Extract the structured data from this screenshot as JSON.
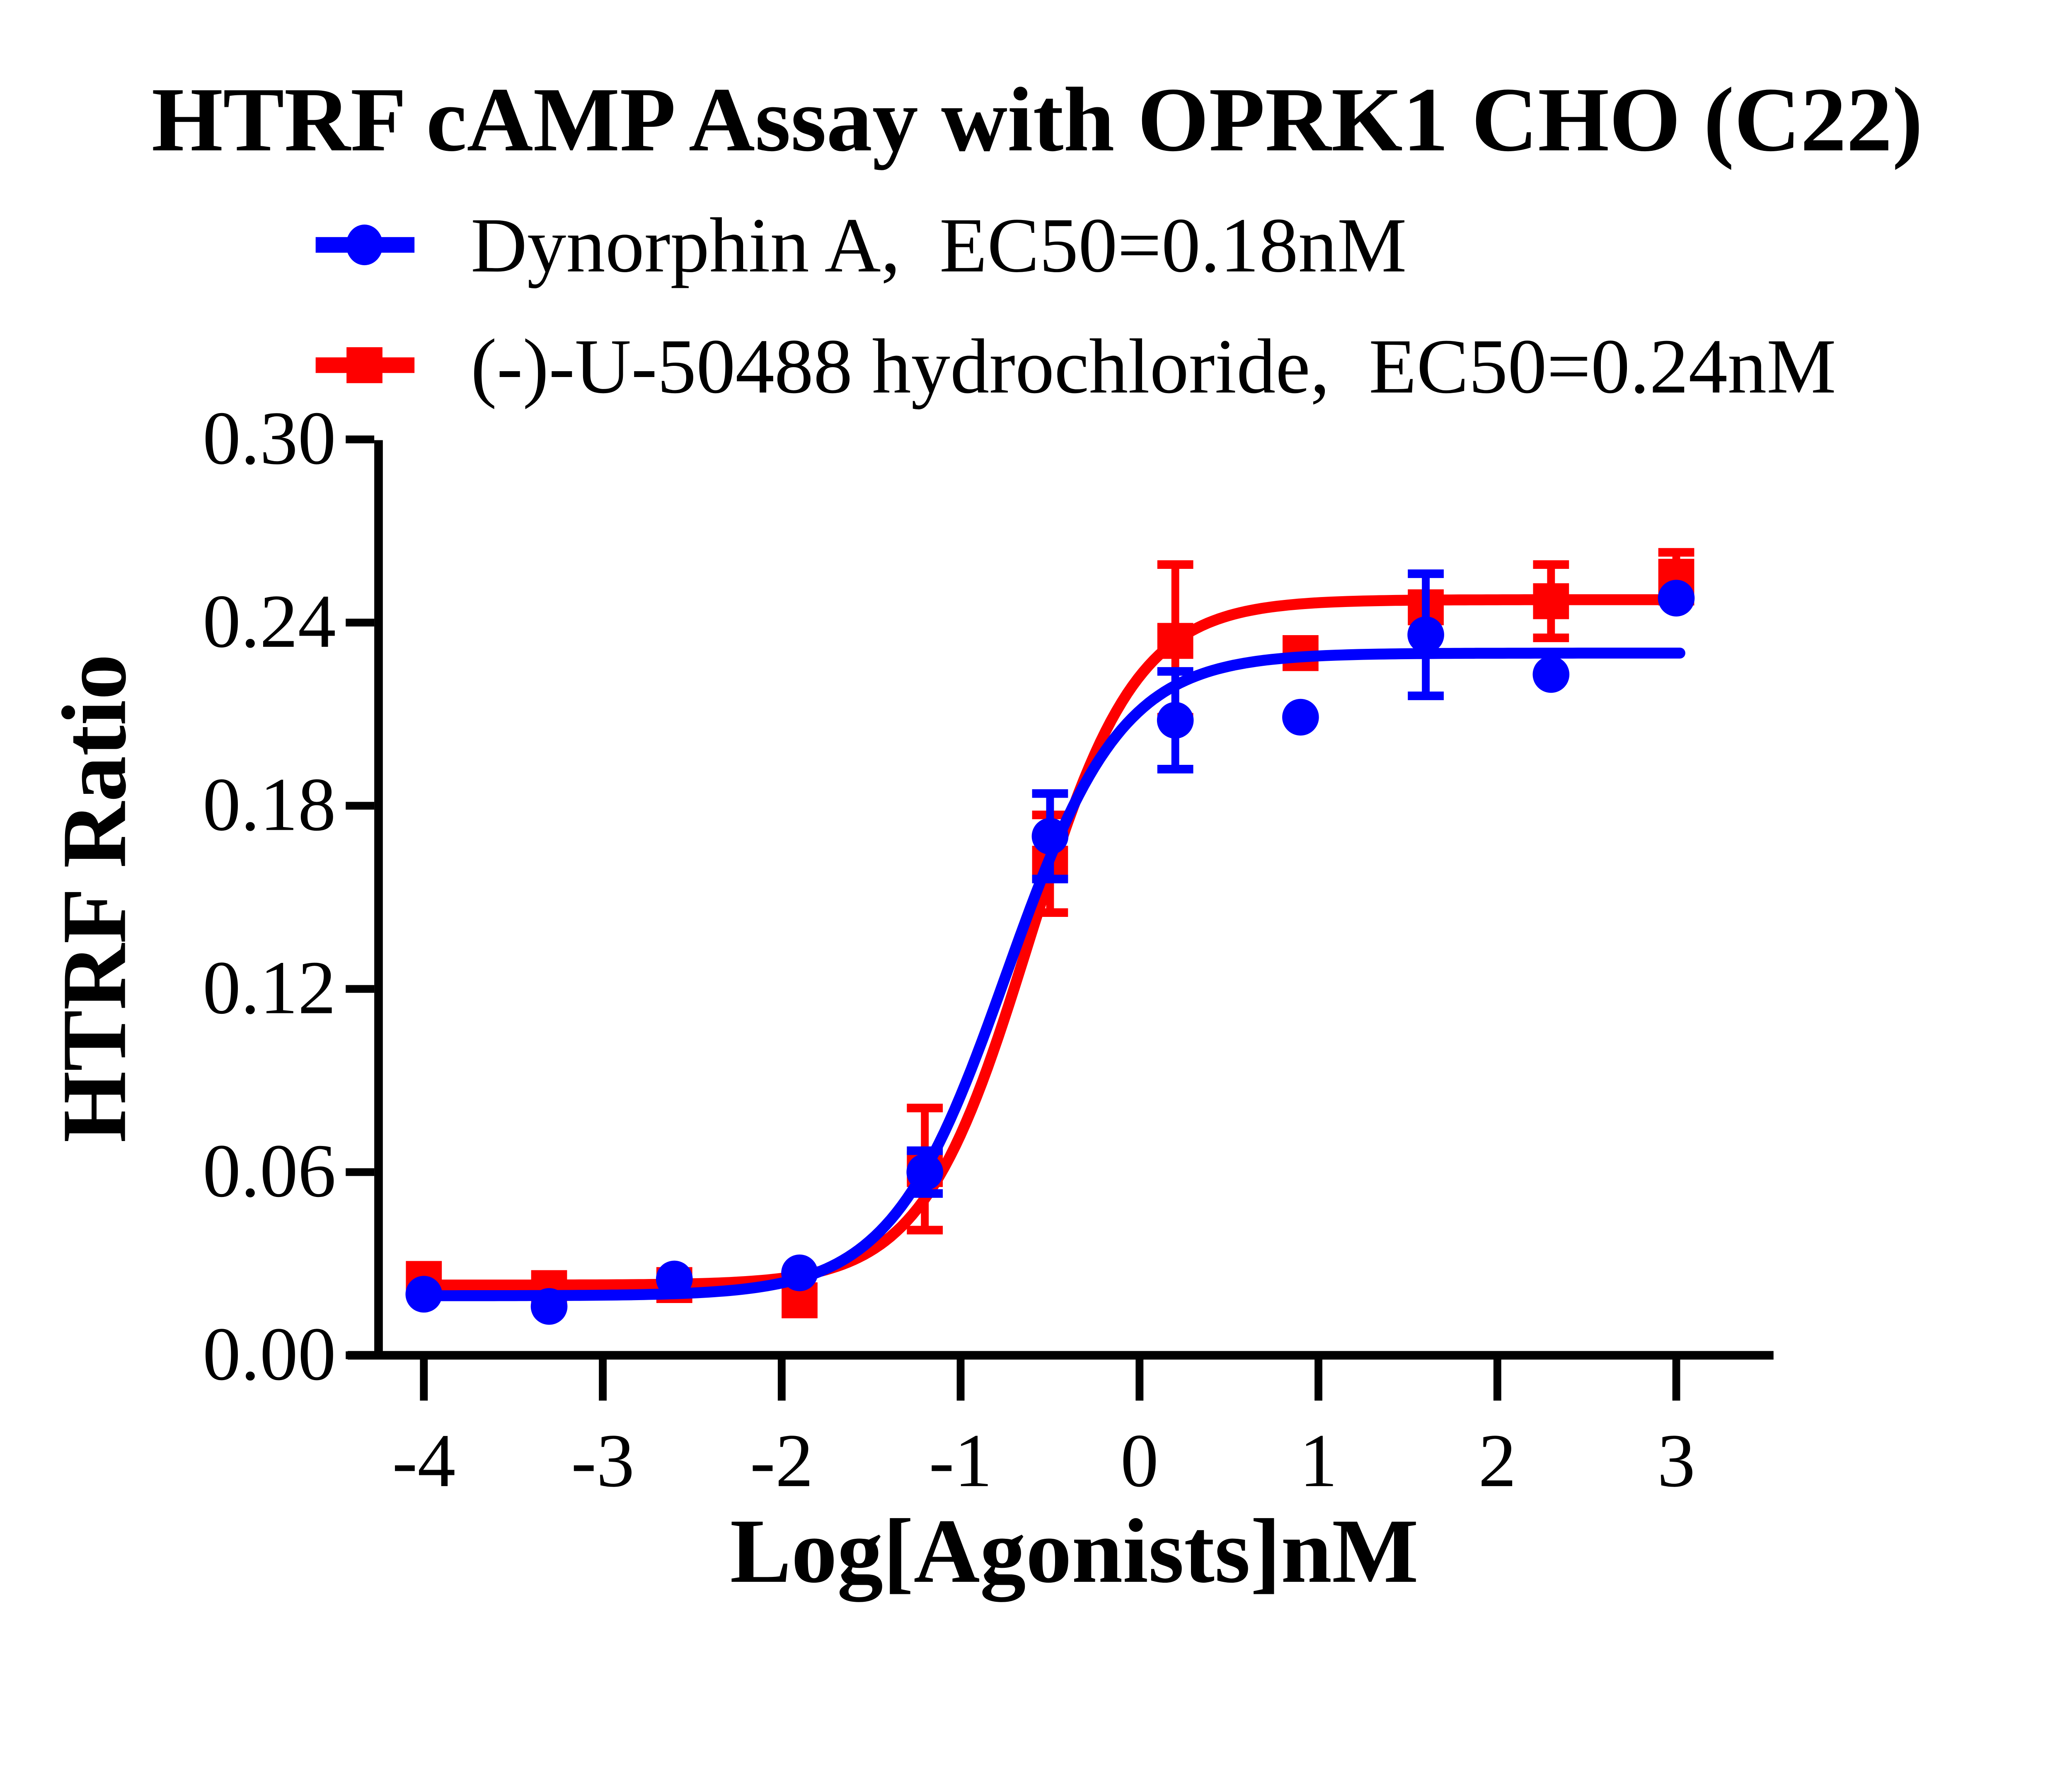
{
  "chart_data": {
    "type": "scatter",
    "title": "HTRF cAMP Assay with OPRK1 CHO (C22)",
    "xlabel": "Log[Agonists]nM",
    "ylabel": "HTRF Ratio",
    "xlim": [
      -4.6,
      3.55
    ],
    "ylim": [
      0.0,
      0.3
    ],
    "x_ticks": [
      "-4",
      "-3",
      "-2",
      "-1",
      "0",
      "1",
      "2",
      "3"
    ],
    "y_ticks": [
      "0.00",
      "0.06",
      "0.12",
      "0.18",
      "0.24",
      "0.30"
    ],
    "grid": false,
    "legend_position": "top-left",
    "background_color": "#ffffff",
    "axis_color": "#000000",
    "series": [
      {
        "name": "Dynorphin A",
        "label": "Dynorphin A,  EC50=0.18nM",
        "ec50_label": "EC50=0.18nM",
        "ec50_nM": 0.18,
        "color": "#0000fe",
        "marker": "circle",
        "x": [
          -4.0,
          -3.3,
          -2.6,
          -1.9,
          -1.2,
          -0.5,
          0.2,
          0.9,
          1.6,
          2.3,
          3.0
        ],
        "y": [
          0.02,
          0.016,
          0.025,
          0.027,
          0.06,
          0.17,
          0.208,
          0.209,
          0.236,
          0.223,
          0.248
        ],
        "yerr": [
          0,
          0,
          0,
          0,
          0.007,
          0.014,
          0.016,
          0,
          0.02,
          0,
          0
        ],
        "fit": {
          "model": "4PL",
          "bottom": 0.0195,
          "top": 0.23,
          "logEC50": -0.745,
          "hill": 1.35
        }
      },
      {
        "name": "(-)-U-50488 hydrochloride",
        "label": "(-)-U-50488 hydrochloride,  EC50=0.24nM",
        "ec50_label": "EC50=0.24nM",
        "ec50_nM": 0.24,
        "color": "#fe0000",
        "marker": "square",
        "x": [
          -4.0,
          -3.3,
          -2.6,
          -1.9,
          -1.2,
          -0.5,
          0.2,
          0.9,
          1.6,
          2.3,
          3.0
        ],
        "y": [
          0.025,
          0.022,
          0.023,
          0.018,
          0.061,
          0.161,
          0.234,
          0.23,
          0.245,
          0.247,
          0.255
        ],
        "yerr": [
          0,
          0,
          0,
          0,
          0.02,
          0.016,
          0.025,
          0,
          0,
          0.012,
          0.008
        ],
        "fit": {
          "model": "4PL",
          "bottom": 0.023,
          "top": 0.2475,
          "logEC50": -0.62,
          "hill": 1.45
        }
      }
    ]
  }
}
